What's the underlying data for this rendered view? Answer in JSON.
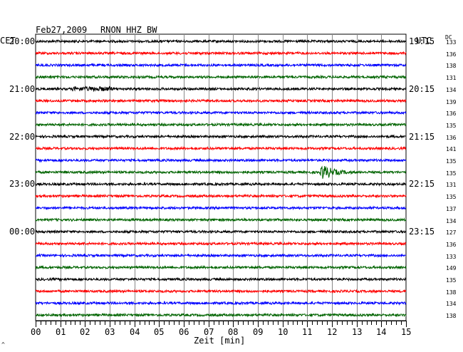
{
  "header": {
    "date": "Feb27,2009",
    "station": "RNON HHZ BW"
  },
  "left_label": "CET",
  "right_label": "UTC",
  "dc_label": "DC",
  "chart_data": {
    "type": "line",
    "title": "Feb27,2009   RNON HHZ BW",
    "xlabel": "Zeit [min]",
    "x_ticks": [
      "00",
      "01",
      "02",
      "03",
      "04",
      "05",
      "06",
      "07",
      "08",
      "09",
      "10",
      "11",
      "12",
      "13",
      "14",
      "15"
    ],
    "xlim": [
      0,
      15
    ],
    "grid": true,
    "cet_hour_labels": [
      "20:00",
      "21:00",
      "22:00",
      "23:00",
      "00:00"
    ],
    "utc_hour_labels": [
      "19:15",
      "20:15",
      "21:15",
      "22:15",
      "23:15"
    ],
    "trace_colors": [
      "#000000",
      "#ff0000",
      "#0000ff",
      "#006400"
    ],
    "dc_offsets": [
      "133",
      "136",
      "138",
      "131",
      "134",
      "139",
      "136",
      "135",
      "136",
      "141",
      "135",
      "135",
      "131",
      "135",
      "137",
      "134",
      "127",
      "136",
      "133",
      "149",
      "135",
      "138",
      "134",
      "138"
    ],
    "events": [
      {
        "trace_index": 4,
        "x_start_min": 1.5,
        "x_end_min": 3.1,
        "amplitude": "small"
      },
      {
        "trace_index": 11,
        "x_start_min": 11.5,
        "x_end_min": 13.2,
        "amplitude": "large"
      }
    ]
  },
  "footer_mark": "^"
}
